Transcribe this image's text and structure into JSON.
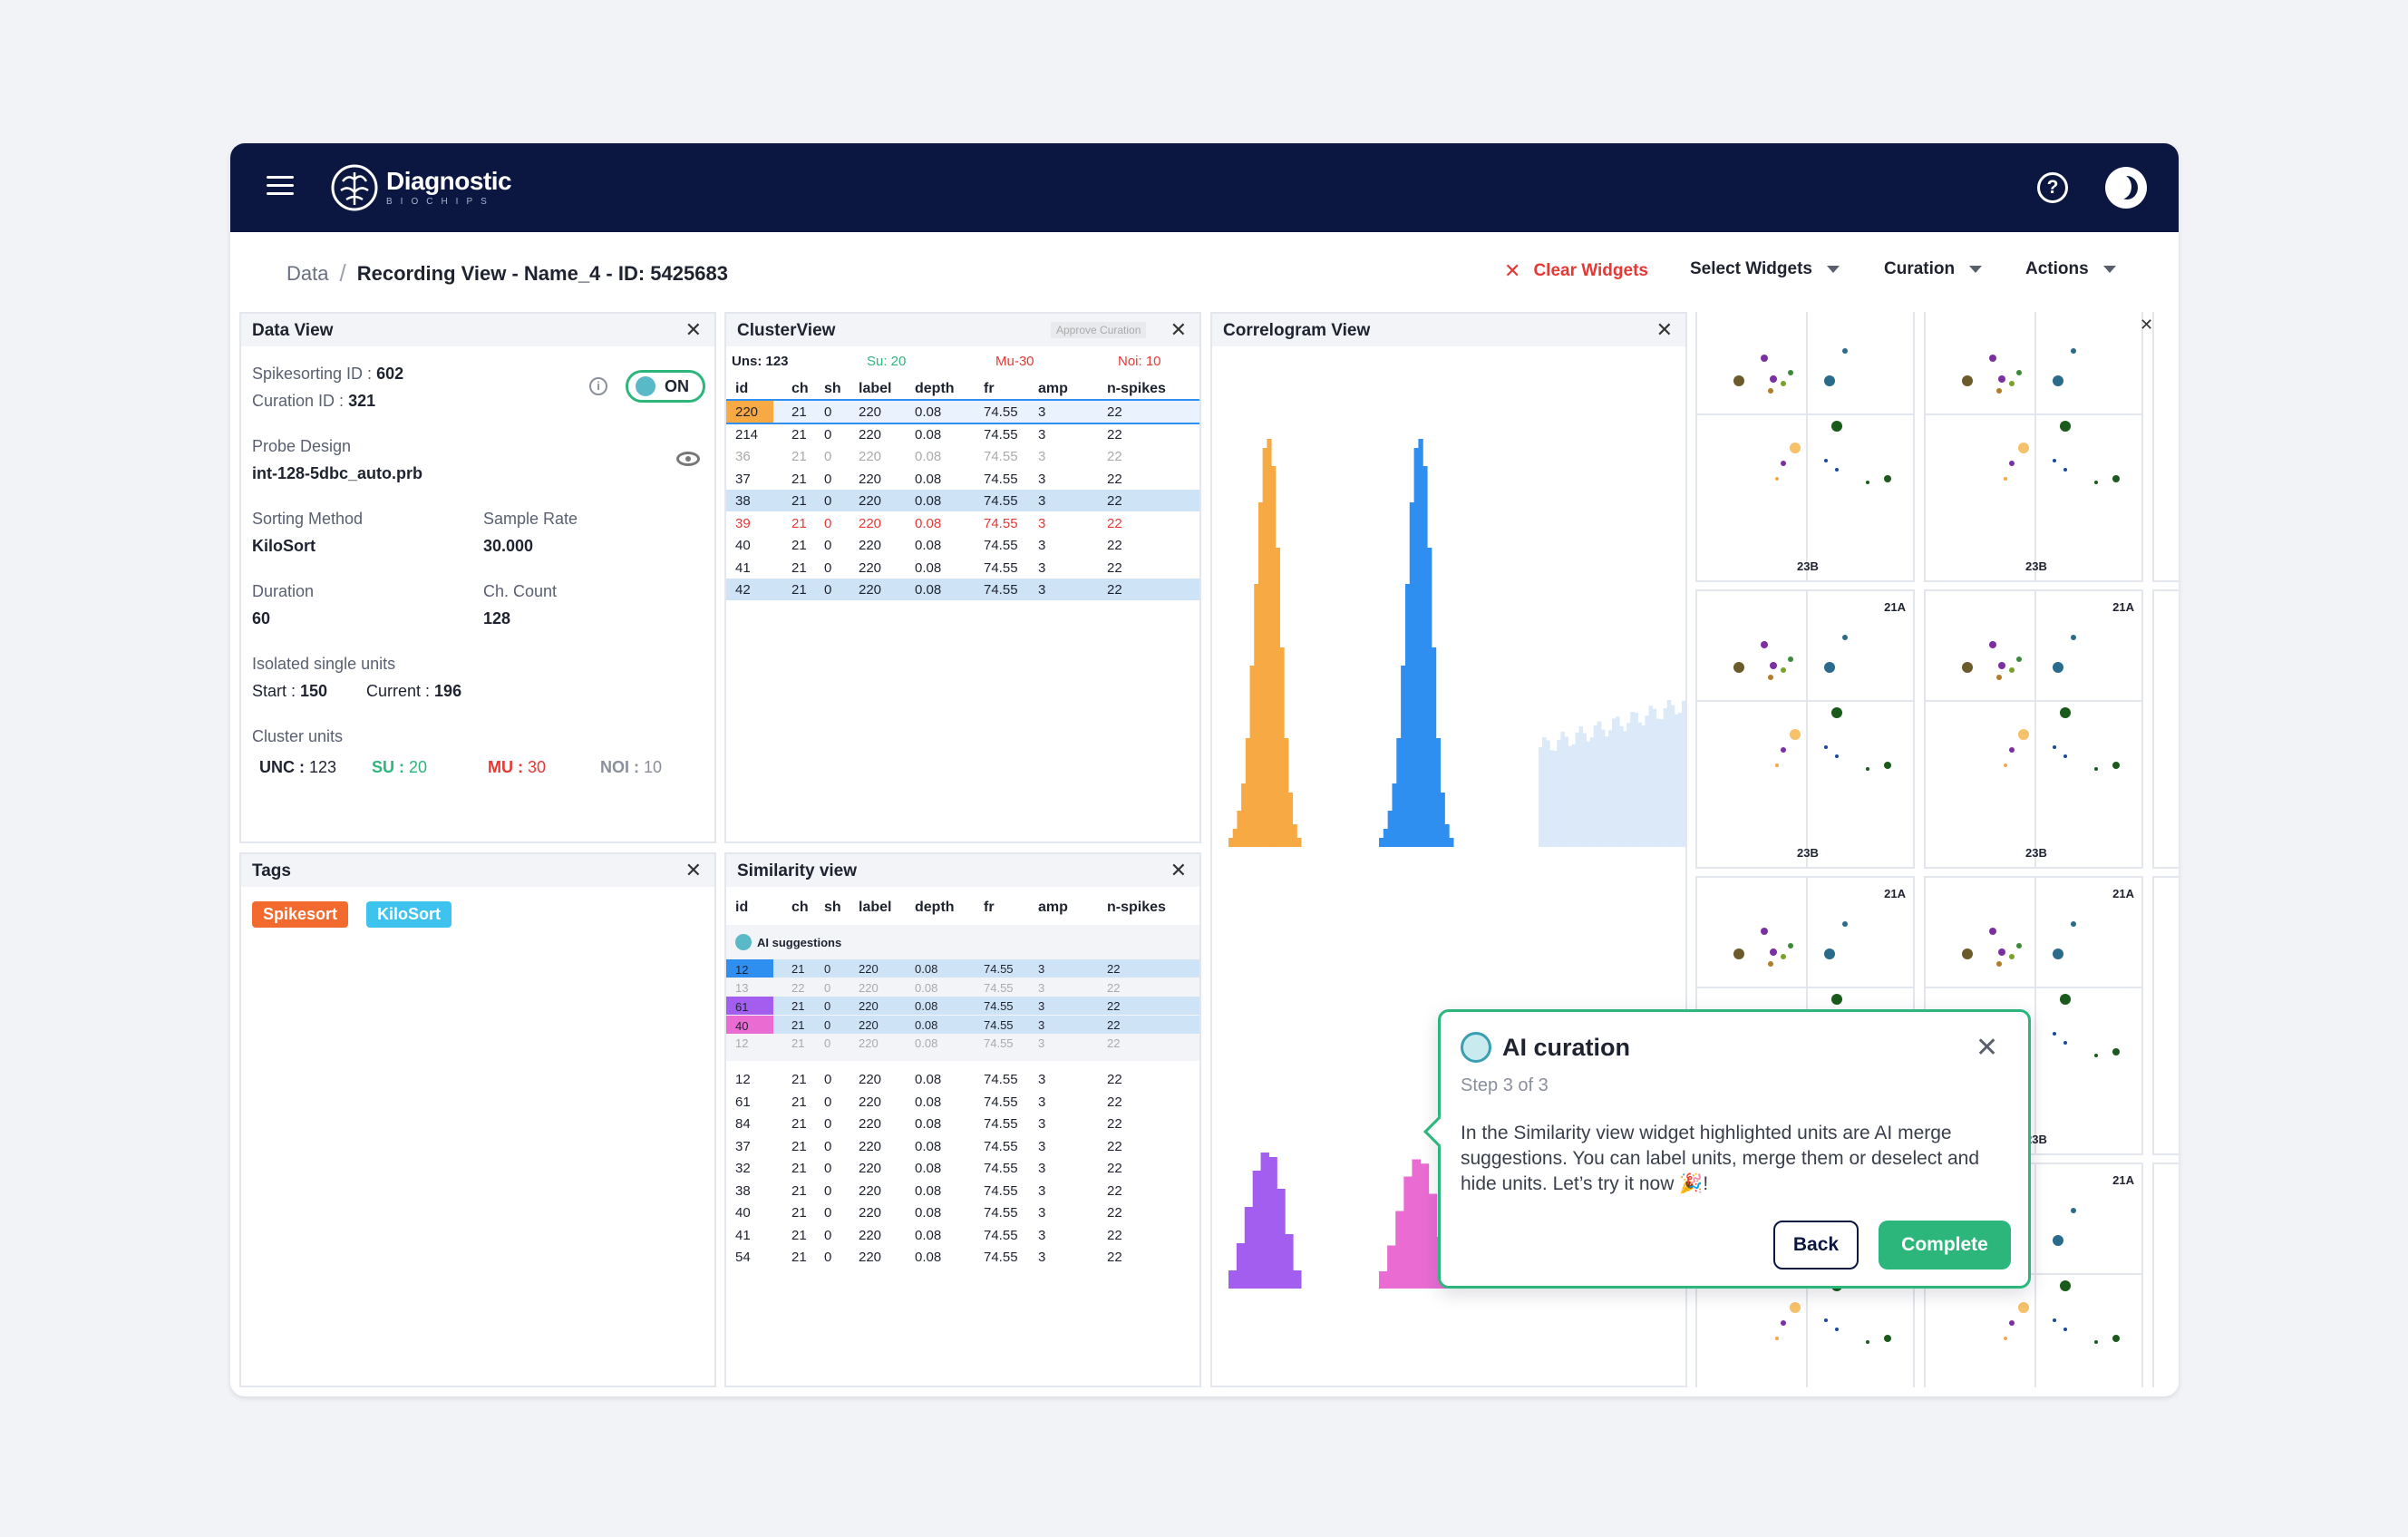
{
  "app": {
    "logo_main": "Diagnostic",
    "logo_sub": "BIOCHIPS",
    "help_icon": "question-circle-icon",
    "theme_icon": "moon-icon"
  },
  "breadcrumb": {
    "root": "Data",
    "sep": "/",
    "current": "Recording View - Name_4 - ID: 5425683"
  },
  "toolbar": {
    "clear": "Clear Widgets",
    "select": "Select Widgets",
    "curation": "Curation",
    "actions": "Actions"
  },
  "data_view": {
    "title": "Data View",
    "spikesorting_label": "Spikesorting ID :",
    "spikesorting_value": "602",
    "curation_label": "Curation ID :",
    "curation_value": "321",
    "toggle": "ON",
    "probe_label": "Probe Design",
    "probe_value": "int-128-5dbc_auto.prb",
    "sorting_label": "Sorting Method",
    "sorting_value": "KiloSort",
    "rate_label": "Sample Rate",
    "rate_value": "30.000",
    "duration_label": "Duration",
    "duration_value": "60",
    "count_label": "Ch. Count",
    "count_value": "128",
    "isolated_label": "Isolated single units",
    "start_label": "Start :",
    "start_value": "150",
    "current_label": "Current :",
    "current_value": "196",
    "cluster_label": "Cluster units",
    "unc_label": "UNC :",
    "unc_value": "123",
    "su_label": "SU :",
    "su_value": "20",
    "mu_label": "MU :",
    "mu_value": "30",
    "noi_label": "NOI :",
    "noi_value": "10"
  },
  "tags": {
    "title": "Tags",
    "items": [
      "Spikesort",
      "KiloSort"
    ],
    "colors": [
      "#f26a2e",
      "#3ec3ef"
    ]
  },
  "cluster_view": {
    "title": "ClusterView",
    "approve": "Approve Curation",
    "uns": "Uns: 123",
    "su": "Su: 20",
    "mu": "Mu-30",
    "noi": "Noi: 10",
    "headers": [
      "id",
      "ch",
      "sh",
      "label",
      "depth",
      "fr",
      "amp",
      "n-spikes"
    ],
    "rows": [
      [
        "220",
        "21",
        "0",
        "220",
        "0.08",
        "74.55",
        "3",
        "22"
      ],
      [
        "214",
        "21",
        "0",
        "220",
        "0.08",
        "74.55",
        "3",
        "22"
      ],
      [
        "36",
        "21",
        "0",
        "220",
        "0.08",
        "74.55",
        "3",
        "22"
      ],
      [
        "37",
        "21",
        "0",
        "220",
        "0.08",
        "74.55",
        "3",
        "22"
      ],
      [
        "38",
        "21",
        "0",
        "220",
        "0.08",
        "74.55",
        "3",
        "22"
      ],
      [
        "39",
        "21",
        "0",
        "220",
        "0.08",
        "74.55",
        "3",
        "22"
      ],
      [
        "40",
        "21",
        "0",
        "220",
        "0.08",
        "74.55",
        "3",
        "22"
      ],
      [
        "41",
        "21",
        "0",
        "220",
        "0.08",
        "74.55",
        "3",
        "22"
      ],
      [
        "42",
        "21",
        "0",
        "220",
        "0.08",
        "74.55",
        "3",
        "22"
      ]
    ]
  },
  "similarity_view": {
    "title": "Similarity view",
    "ai_label": "AI suggestions",
    "headers": [
      "id",
      "ch",
      "sh",
      "label",
      "depth",
      "fr",
      "amp",
      "n-spikes"
    ],
    "ai_rows": [
      [
        "12",
        "21",
        "0",
        "220",
        "0.08",
        "74.55",
        "3",
        "22"
      ],
      [
        "13",
        "22",
        "0",
        "220",
        "0.08",
        "74.55",
        "3",
        "22"
      ],
      [
        "61",
        "21",
        "0",
        "220",
        "0.08",
        "74.55",
        "3",
        "22"
      ],
      [
        "40",
        "21",
        "0",
        "220",
        "0.08",
        "74.55",
        "3",
        "22"
      ],
      [
        "12",
        "21",
        "0",
        "220",
        "0.08",
        "74.55",
        "3",
        "22"
      ]
    ],
    "rows": [
      [
        "12",
        "21",
        "0",
        "220",
        "0.08",
        "74.55",
        "3",
        "22"
      ],
      [
        "61",
        "21",
        "0",
        "220",
        "0.08",
        "74.55",
        "3",
        "22"
      ],
      [
        "84",
        "21",
        "0",
        "220",
        "0.08",
        "74.55",
        "3",
        "22"
      ],
      [
        "37",
        "21",
        "0",
        "220",
        "0.08",
        "74.55",
        "3",
        "22"
      ],
      [
        "32",
        "21",
        "0",
        "220",
        "0.08",
        "74.55",
        "3",
        "22"
      ],
      [
        "38",
        "21",
        "0",
        "220",
        "0.08",
        "74.55",
        "3",
        "22"
      ],
      [
        "40",
        "21",
        "0",
        "220",
        "0.08",
        "74.55",
        "3",
        "22"
      ],
      [
        "41",
        "21",
        "0",
        "220",
        "0.08",
        "74.55",
        "3",
        "22"
      ],
      [
        "54",
        "21",
        "0",
        "220",
        "0.08",
        "74.55",
        "3",
        "22"
      ]
    ]
  },
  "correlogram": {
    "title": "Correlogram View",
    "colors": [
      "#f7a944",
      "#2f8ff0",
      "#dbe9f8",
      "#a35ef0",
      "#ea6cd2"
    ]
  },
  "scatter": {
    "labels_top": [
      "",
      "",
      "21A",
      "21A",
      "21A",
      "21A",
      "21A",
      "21A"
    ],
    "labels_bottom": [
      "23B",
      "23B",
      "23B",
      "23B",
      "23B",
      "23B",
      "",
      ""
    ]
  },
  "modal": {
    "title": "AI curation",
    "step": "Step 3 of 3",
    "body": "In the Similarity view widget highlighted units are AI merge suggestions. You can label units, merge them or deselect and hide units. Let’s try it now 🎉!",
    "back": "Back",
    "complete": "Complete"
  }
}
